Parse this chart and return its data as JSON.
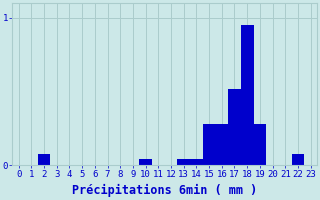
{
  "hours": [
    0,
    1,
    2,
    3,
    4,
    5,
    6,
    7,
    8,
    9,
    10,
    11,
    12,
    13,
    14,
    15,
    16,
    17,
    18,
    19,
    20,
    21,
    22,
    23
  ],
  "values": [
    0,
    0,
    0.08,
    0,
    0,
    0,
    0,
    0,
    0,
    0,
    0.04,
    0,
    0,
    0.04,
    0.04,
    0.28,
    0.28,
    0.52,
    0.95,
    0.28,
    0,
    0,
    0.08,
    0
  ],
  "bar_color": "#0000cc",
  "bg_color": "#cce8e8",
  "grid_color": "#aacccc",
  "text_color": "#0000cc",
  "xlabel": "Précipitations 6min ( mm )",
  "ylim": [
    0,
    1.1
  ],
  "yticks": [
    0,
    1
  ],
  "tick_fontsize": 6.5,
  "xlabel_fontsize": 8.5
}
